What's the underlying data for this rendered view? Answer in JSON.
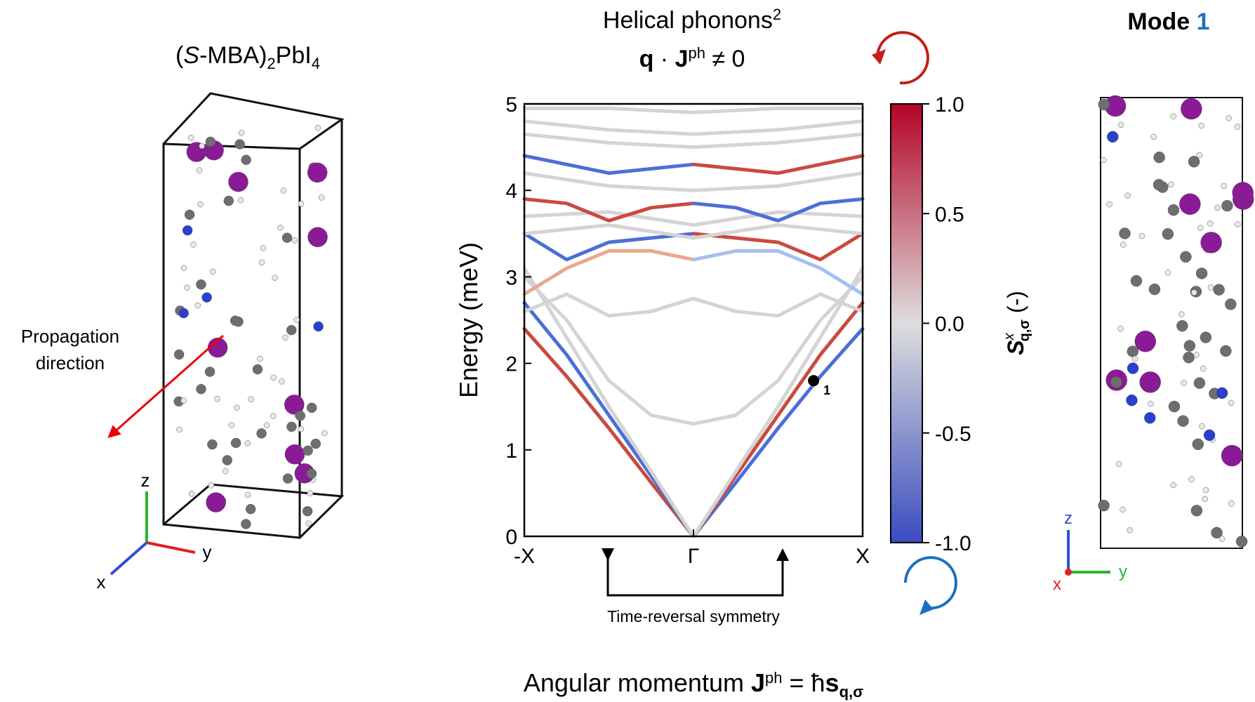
{
  "chart_data": {
    "type": "line",
    "title": [
      "Helical phonons",
      "2"
    ],
    "subtitle": [
      "q",
      " · ",
      "J",
      "ph",
      " ≠ 0"
    ],
    "ylabel": "Energy (meV)",
    "xlim": [
      -1,
      1
    ],
    "xticks": [
      {
        "value": -1,
        "label": "-X"
      },
      {
        "value": 0,
        "label": "Γ"
      },
      {
        "value": 1,
        "label": "X"
      }
    ],
    "ylim": [
      0,
      5
    ],
    "yticks": [
      0,
      1,
      2,
      3,
      4,
      5
    ],
    "series": [
      {
        "color": "#c94a3f",
        "x": [
          -1,
          -0.75,
          -0.5,
          -0.25,
          0
        ],
        "values": [
          2.4,
          1.85,
          1.25,
          0.62,
          0
        ]
      },
      {
        "color": "#4a6fd6",
        "x": [
          0,
          0.25,
          0.5,
          0.75,
          1
        ],
        "values": [
          0,
          0.62,
          1.25,
          1.85,
          2.4
        ]
      },
      {
        "color": "#4a6fd6",
        "x": [
          -1,
          -0.75,
          -0.5,
          -0.25,
          0
        ],
        "values": [
          2.7,
          2.1,
          1.4,
          0.7,
          0
        ]
      },
      {
        "color": "#c94a3f",
        "x": [
          0,
          0.25,
          0.5,
          0.75,
          1
        ],
        "values": [
          0,
          0.7,
          1.4,
          2.1,
          2.7
        ]
      },
      {
        "color": "#d4d4d4",
        "x": [
          -1,
          -0.5,
          0,
          0.5,
          1
        ],
        "values": [
          3.1,
          1.5,
          0,
          1.5,
          3.1
        ]
      },
      {
        "color": "#d4d4d4",
        "x": [
          -1,
          -0.75,
          -0.5,
          -0.25,
          0,
          0.25,
          0.5,
          0.75,
          1
        ],
        "values": [
          3.0,
          2.5,
          1.8,
          1.4,
          1.3,
          1.4,
          1.8,
          2.5,
          3.0
        ]
      },
      {
        "color": "#d4d4d4",
        "x": [
          -1,
          -0.75,
          -0.5,
          -0.25,
          0,
          0.25,
          0.5,
          0.75,
          1
        ],
        "values": [
          2.6,
          2.8,
          2.55,
          2.6,
          2.75,
          2.6,
          2.55,
          2.8,
          2.6
        ]
      },
      {
        "color": "#e8a98f",
        "x": [
          -1,
          -0.75,
          -0.5,
          -0.25,
          0
        ],
        "values": [
          2.8,
          3.1,
          3.3,
          3.3,
          3.2
        ]
      },
      {
        "color": "#a5bff0",
        "x": [
          0,
          0.25,
          0.5,
          0.75,
          1
        ],
        "values": [
          3.2,
          3.3,
          3.3,
          3.1,
          2.8
        ]
      },
      {
        "color": "#4a6fd6",
        "x": [
          -1,
          -0.75,
          -0.5,
          -0.25,
          0
        ],
        "values": [
          3.5,
          3.2,
          3.4,
          3.45,
          3.5
        ]
      },
      {
        "color": "#c94a3f",
        "x": [
          0,
          0.25,
          0.5,
          0.75,
          1
        ],
        "values": [
          3.5,
          3.45,
          3.4,
          3.2,
          3.5
        ]
      },
      {
        "color": "#d4d4d4",
        "x": [
          -1,
          -0.5,
          0,
          0.5,
          1
        ],
        "values": [
          3.5,
          3.6,
          3.45,
          3.6,
          3.5
        ]
      },
      {
        "color": "#d4d4d4",
        "x": [
          -1,
          -0.5,
          0,
          0.5,
          1
        ],
        "values": [
          3.7,
          3.75,
          3.6,
          3.75,
          3.7
        ]
      },
      {
        "color": "#c94a3f",
        "x": [
          -1,
          -0.75,
          -0.5,
          -0.25,
          0
        ],
        "values": [
          3.9,
          3.85,
          3.65,
          3.8,
          3.85
        ]
      },
      {
        "color": "#4a6fd6",
        "x": [
          0,
          0.25,
          0.5,
          0.75,
          1
        ],
        "values": [
          3.85,
          3.8,
          3.65,
          3.85,
          3.9
        ]
      },
      {
        "color": "#d4d4d4",
        "x": [
          -1,
          -0.5,
          0,
          0.5,
          1
        ],
        "values": [
          4.2,
          4.05,
          4.0,
          4.05,
          4.2
        ]
      },
      {
        "color": "#4a6fd6",
        "x": [
          -1,
          -0.75,
          -0.5,
          -0.25,
          0
        ],
        "values": [
          4.4,
          4.3,
          4.2,
          4.25,
          4.3
        ]
      },
      {
        "color": "#c94a3f",
        "x": [
          0,
          0.25,
          0.5,
          0.75,
          1
        ],
        "values": [
          4.3,
          4.25,
          4.2,
          4.3,
          4.4
        ]
      },
      {
        "color": "#d4d4d4",
        "x": [
          -1,
          -0.5,
          0,
          0.5,
          1
        ],
        "values": [
          4.65,
          4.55,
          4.5,
          4.55,
          4.65
        ]
      },
      {
        "color": "#d4d4d4",
        "x": [
          -1,
          -0.5,
          0,
          0.5,
          1
        ],
        "values": [
          4.8,
          4.7,
          4.65,
          4.7,
          4.8
        ]
      },
      {
        "color": "#d4d4d4",
        "x": [
          -1,
          -0.5,
          0,
          0.5,
          1
        ],
        "values": [
          4.95,
          4.95,
          4.9,
          4.95,
          4.95
        ]
      }
    ],
    "marker": {
      "x": 0.71,
      "y": 1.8,
      "label": "1"
    },
    "colorbar": {
      "colormap": [
        "#3b4cc0",
        "#dddddd",
        "#b40426"
      ],
      "clim": [
        -1,
        1
      ],
      "ticks": [
        {
          "value": 1,
          "label": "1.0"
        },
        {
          "value": 0.5,
          "label": "0.5"
        },
        {
          "value": 0,
          "label": "0.0"
        },
        {
          "value": -0.5,
          "label": "-0.5"
        },
        {
          "value": -1,
          "label": "-1.0"
        }
      ],
      "label": [
        "S",
        "x",
        "q,σ",
        " (-)"
      ]
    },
    "annotation": "Time-reversal symmetry"
  },
  "left_panel": {
    "title": [
      "(",
      "S",
      "-MBA)",
      "2",
      "PbI",
      "4"
    ],
    "arrow_label": [
      "Propagation",
      "direction"
    ],
    "axes": [
      "z",
      "y",
      "x"
    ]
  },
  "right_panel": {
    "title": [
      "Mode",
      "1"
    ],
    "axes": [
      "z",
      "y",
      "x"
    ]
  },
  "footer": [
    "Angular momentum ",
    "J",
    "ph",
    " = ħ",
    "s",
    "q,σ"
  ]
}
